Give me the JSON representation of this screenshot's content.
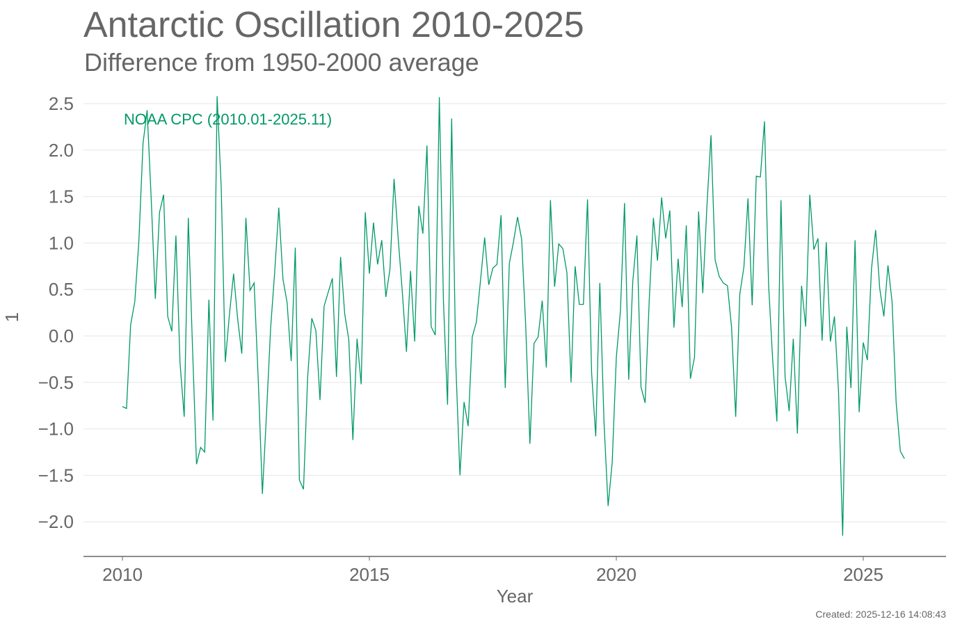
{
  "header": {
    "title": "Antarctic Oscillation 2010-2025",
    "subtitle": "Difference from 1950-2000 average"
  },
  "footer": {
    "created": "Created: 2025-12-16 14:08:43"
  },
  "colors": {
    "series": "#009966",
    "text": "#666666",
    "grid": "#e6e6e6",
    "axis": "#666666"
  },
  "chart_data": {
    "type": "line",
    "title": "Antarctic Oscillation 2010-2025",
    "subtitle": "Difference from 1950-2000 average",
    "xlabel": "Year",
    "ylabel": "1",
    "xlim": [
      2009.85,
      2026.3
    ],
    "ylim": [
      -2.4,
      2.6
    ],
    "grid": true,
    "x_ticks": [
      2010,
      2015,
      2020,
      2025
    ],
    "x_tick_labels": [
      "2010",
      "2015",
      "2020",
      "2025"
    ],
    "y_ticks": [
      -2.0,
      -1.5,
      -1.0,
      -0.5,
      0.0,
      0.5,
      1.0,
      1.5,
      2.0,
      2.5
    ],
    "y_tick_labels": [
      "−2.0",
      "−1.5",
      "−1.0",
      "−0.5",
      "0.0",
      "0.5",
      "1.0",
      "1.5",
      "2.0",
      "2.5"
    ],
    "series": [
      {
        "name": "NOAA CPC (2010.01-2025.11)",
        "start_year": 2010,
        "start_month": 1,
        "frequency": "monthly",
        "values": [
          -0.76,
          -0.78,
          0.12,
          0.37,
          1.03,
          2.07,
          2.43,
          1.47,
          0.4,
          1.33,
          1.52,
          0.21,
          0.05,
          1.08,
          -0.29,
          -0.87,
          1.27,
          -0.09,
          -1.38,
          -1.2,
          -1.25,
          0.39,
          -0.91,
          2.58,
          1.6,
          -0.28,
          0.23,
          0.67,
          0.18,
          -0.19,
          1.27,
          0.49,
          0.57,
          -0.48,
          -1.7,
          -0.84,
          0.08,
          0.69,
          1.38,
          0.61,
          0.36,
          -0.27,
          0.95,
          -1.55,
          -1.65,
          -0.44,
          0.19,
          0.06,
          -0.69,
          0.32,
          0.47,
          0.62,
          -0.44,
          0.85,
          0.24,
          -0.04,
          -1.12,
          -0.03,
          -0.52,
          1.33,
          0.67,
          1.22,
          0.77,
          1.03,
          0.42,
          0.72,
          1.69,
          1.05,
          0.48,
          -0.17,
          0.7,
          -0.06,
          1.4,
          1.1,
          2.05,
          0.1,
          0.01,
          2.57,
          0.37,
          -0.74,
          2.34,
          -0.31,
          -1.5,
          -0.71,
          -0.97,
          -0.01,
          0.15,
          0.6,
          1.06,
          0.55,
          0.73,
          0.77,
          1.3,
          -0.56,
          0.78,
          1.01,
          1.28,
          1.04,
          0.1,
          -1.16,
          -0.08,
          -0.01,
          0.38,
          -0.34,
          1.46,
          0.53,
          0.99,
          0.94,
          0.68,
          -0.5,
          0.75,
          0.34,
          0.34,
          1.47,
          -0.4,
          -1.08,
          0.57,
          -0.93,
          -1.83,
          -1.36,
          -0.23,
          0.27,
          1.43,
          -0.47,
          0.59,
          1.08,
          -0.55,
          -0.72,
          0.38,
          1.27,
          0.81,
          1.49,
          1.05,
          1.35,
          0.09,
          0.83,
          0.31,
          1.19,
          -0.46,
          -0.23,
          1.34,
          0.46,
          1.39,
          2.16,
          0.82,
          0.64,
          0.57,
          0.54,
          0.09,
          -0.87,
          0.45,
          0.74,
          1.48,
          0.33,
          1.72,
          1.71,
          2.31,
          0.55,
          -0.26,
          -0.92,
          1.46,
          -0.44,
          -0.81,
          -0.03,
          -1.05,
          0.54,
          0.1,
          1.52,
          0.93,
          1.05,
          -0.05,
          1.01,
          -0.06,
          0.21,
          -0.61,
          -2.15,
          0.1,
          -0.56,
          1.03,
          -0.82,
          -0.07,
          -0.26,
          0.72,
          1.14,
          0.51,
          0.21,
          0.76,
          0.37,
          -0.72,
          -1.24,
          -1.32
        ]
      }
    ],
    "annotations": [
      {
        "text": "NOAA CPC (2010.01-2025.11)",
        "position": "top-left"
      }
    ]
  }
}
